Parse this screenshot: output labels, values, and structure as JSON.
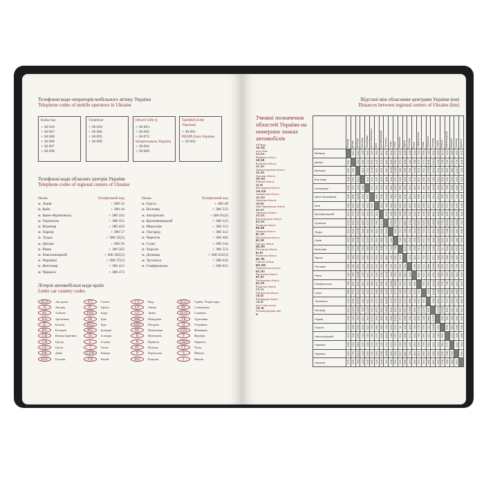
{
  "left_page": {
    "mobile": {
      "title_ua": "Телефонні коди операторів мобільного зв'язку України",
      "title_en": "Telephone codes of mobile operators in Ukraine",
      "operators": [
        {
          "name": "Київстар",
          "codes": [
            "+ 38 039",
            "+ 38 067",
            "+ 38 068",
            "+ 38 096",
            "+ 38 097",
            "+ 38 098"
          ]
        },
        {
          "name": "Vodafone",
          "codes": [
            "+ 38 050",
            "+ 38 066",
            "+ 38 095",
            "+ 38 099"
          ]
        },
        {
          "name": "lifecell (life:))",
          "codes": [
            "+ 38 063",
            "+ 38 093",
            "+ 38 073"
          ],
          "sub": "Інтертелеком Україна",
          "sub_codes": [
            "+ 38 094",
            "+ 38 089"
          ]
        },
        {
          "name": "ТриМоб (Utel Україна)",
          "codes": [
            "+ 38 091"
          ],
          "sub": "PEOPLEnet Україна",
          "sub_codes": [
            "+ 38 092"
          ]
        }
      ]
    },
    "regional": {
      "title_ua": "Телефонні коди обласних центрів України",
      "title_en": "Telephone codes of regional centers of Ukraine",
      "col_name": "Назва",
      "col_code": "Телефонний код",
      "left": [
        [
          "м. Львів",
          "+ 380 32"
        ],
        [
          "м. Київ",
          "+ 380 44"
        ],
        [
          "м. Івано-Франківськ",
          "+ 380 342"
        ],
        [
          "м. Тернопіль",
          "+ 380 352"
        ],
        [
          "м. Вінниця",
          "+ 380 432"
        ],
        [
          "м. Харків",
          "+ 380 57"
        ],
        [
          "м. Луцьк",
          "+ 380 32(2)"
        ],
        [
          "м. Дніпро",
          "+ 380 56"
        ],
        [
          "м. Рівне",
          "+ 380 362"
        ],
        [
          "м. Хмельницький",
          "+ 380 382(2)"
        ],
        [
          "м. Чернівці",
          "+ 380 37(2)"
        ],
        [
          "м. Житомир",
          "+ 380 412"
        ],
        [
          "м. Черкаси",
          "+ 380 472"
        ]
      ],
      "right": [
        [
          "м. Одеса",
          "+ 380 48"
        ],
        [
          "м. Полтава",
          "+ 380 532"
        ],
        [
          "м. Запоріжжя",
          "+ 380 61(2)"
        ],
        [
          "м. Кропивницький",
          "+ 380 522"
        ],
        [
          "м. Миколаїв",
          "+ 380 512"
        ],
        [
          "м. Ужгород",
          "+ 380 312"
        ],
        [
          "м. Чернігів",
          "+ 380 462"
        ],
        [
          "м. Суми",
          "+ 380 542"
        ],
        [
          "м. Херсон",
          "+ 380 552"
        ],
        [
          "м. Донецьк",
          "+ 380 622(3)"
        ],
        [
          "м. Луганськ",
          "+ 380 642"
        ],
        [
          "м. Сімферополь",
          "+ 380 652"
        ]
      ]
    },
    "car_codes": {
      "title_ua": "Літерні автомобільні коди країн",
      "title_en": "Letter car country codes",
      "columns": [
        [
          [
            "AUS",
            "Австралія"
          ],
          [
            "A",
            "Австрія"
          ],
          [
            "AL",
            "Албанія"
          ],
          [
            "RA",
            "Аргентина"
          ],
          [
            "B",
            "Бельгія"
          ],
          [
            "BG",
            "Болгарія"
          ],
          [
            "GB",
            "Велика Британія"
          ],
          [
            "GR",
            "Греція"
          ],
          [
            "GE",
            "Грузія"
          ],
          [
            "DK",
            "Данія"
          ],
          [
            "EST",
            "Естонія"
          ]
        ],
        [
          [
            "ET",
            "Єгипет"
          ],
          [
            "IL",
            "Ізраїль"
          ],
          [
            "IND",
            "Індія"
          ],
          [
            "IR",
            "Іран"
          ],
          [
            "IRQ",
            "Ірак"
          ],
          [
            "IRL",
            "Ірландія"
          ],
          [
            "IS",
            "Ісландія"
          ],
          [
            "E",
            "Іспанія"
          ],
          [
            "I",
            "Італія"
          ],
          [
            "CDN",
            "Канада"
          ],
          [
            "CN",
            "Китай"
          ]
        ],
        [
          [
            "CY",
            "Кіпр"
          ],
          [
            "LV",
            "Латвія"
          ],
          [
            "LT",
            "Литва"
          ],
          [
            "MK",
            "Македонія"
          ],
          [
            "MD",
            "Молдова"
          ],
          [
            "NL",
            "Нідерланди"
          ],
          [
            "D",
            "Німеччина"
          ],
          [
            "N",
            "Норвегія"
          ],
          [
            "PL",
            "Польща"
          ],
          [
            "P",
            "Португалія"
          ],
          [
            "RO",
            "Румунія"
          ]
        ],
        [
          [
            "SCG",
            "Сербія і Чорногорія"
          ],
          [
            "SK",
            "Словаччина"
          ],
          [
            "SLO",
            "Словенія"
          ],
          [
            "TR",
            "Туреччина"
          ],
          [
            "H",
            "Угорщина"
          ],
          [
            "FIN",
            "Фінляндія"
          ],
          [
            "F",
            "Франція"
          ],
          [
            "CRO",
            "Хорватія"
          ],
          [
            "CZ",
            "Чехія"
          ],
          [
            "S",
            "Швеція"
          ],
          [
            "J",
            "Японія"
          ]
        ]
      ]
    }
  },
  "right_page": {
    "title_ua": "Відстані між обласними центрами України (км)",
    "title_en": "Distances between regional centers of Ukraine (km)",
    "legend_title": "Умовні позначення областей України на номерних знаках автомобілів",
    "region_codes": [
      [
        "АР Крим",
        "AK, KK"
      ],
      [
        "місто Київ",
        "AA, KA"
      ],
      [
        "Вінницька область",
        "AB, KB"
      ],
      [
        "Волинська область",
        "AC, KC"
      ],
      [
        "Дніпропетровська область",
        "AE, KE"
      ],
      [
        "Донецька область",
        "AH, KH"
      ],
      [
        "Київська область",
        "AI, KI"
      ],
      [
        "Житомирська область",
        "AM, KM"
      ],
      [
        "Закарпатська область",
        "AO, KO"
      ],
      [
        "Запорізька область",
        "AP, KP"
      ],
      [
        "Івано-Франківська область",
        "AT, KT"
      ],
      [
        "Харківська область",
        "AX, KX"
      ],
      [
        "Кіровоградська область",
        "BA, HA"
      ],
      [
        "Луганська область",
        "BB, HB"
      ],
      [
        "Львівська область",
        "BC, HC"
      ],
      [
        "Миколаївська область",
        "BE, HE"
      ],
      [
        "Одеська область",
        "BH, HH"
      ],
      [
        "Полтавська область",
        "BI, HI"
      ],
      [
        "Рівненська область",
        "BK, HK"
      ],
      [
        "Сумська область",
        "BM, HM"
      ],
      [
        "Тернопільська область",
        "BO, HO"
      ],
      [
        "Херсонська область",
        "BT, HT"
      ],
      [
        "Хмельницька область",
        "BX, HX"
      ],
      [
        "Черкаська область",
        "CA, IA"
      ],
      [
        "Чернігівська область",
        "CB, IB"
      ],
      [
        "Чернівецька область",
        "CE, IE"
      ],
      [
        "місто Севастополь",
        "CH, IH"
      ],
      [
        "Загальнодержавні серії",
        "II"
      ]
    ],
    "distance_table": {
      "cities": [
        "Вінниця",
        "Дніпро",
        "Донецьк",
        "Житомир",
        "Запоріжжя",
        "Івано-Франківськ",
        "Київ",
        "Кропивницький",
        "Луганськ",
        "Луцьк",
        "Львів",
        "Миколаїв",
        "Одеса",
        "Полтава",
        "Рівне",
        "Сімферополь",
        "Суми",
        "Тернопіль",
        "Ужгород",
        "Харків",
        "Херсон",
        "Хмельницький",
        "Черкаси",
        "Чернівці",
        "Чернігів"
      ],
      "upper_triangle": [
        [
          582,
          832,
          148,
          656,
          346,
          260,
          312,
          920,
          324,
          376,
          426,
          440,
          458,
          242,
          740,
          568,
          246,
          610,
          666,
          514,
          124,
          348,
          300,
          376
        ],
        [
          250,
          560,
          122,
          896,
          442,
          270,
          402,
          906,
          958,
          370,
          480,
          182,
          788,
          462,
          370,
          828,
          1152,
          218,
          348,
          706,
          234,
          778,
          526
        ],
        [
          810,
          224,
          1146,
          692,
          520,
          192,
          1156,
          1208,
          580,
          690,
          390,
          1038,
          504,
          512,
          1078,
          1402,
          264,
          534,
          956,
          484,
          1012,
          704
        ],
        [
          634,
          464,
          142,
          326,
          898,
          346,
          422,
          518,
          532,
          420,
          228,
          832,
          450,
          332,
          728,
          612,
          606,
          234,
          326,
          418,
          234
        ],
        [
          970,
          534,
          344,
          416,
          980,
          1032,
          356,
          466,
          304,
          862,
          364,
          492,
          902,
          1226,
          316,
          310,
          780,
          308,
          836,
          648
        ],
        [
          606,
          626,
          1234,
          286,
          134,
          686,
          616,
          804,
          310,
          988,
          914,
          140,
          264,
          1012,
          780,
          230,
          678,
          146,
          698
        ],
        [
          304,
          780,
          464,
          564,
          496,
          550,
          302,
          346,
          810,
          308,
          474,
          870,
          494,
          584,
          376,
          226,
          560,
          146
        ],
        [
          672,
          636,
          688,
          208,
          294,
          250,
          518,
          506,
          438,
          558,
          882,
          458,
          280,
          436,
          142,
          508,
          418
        ],
        [
          1244,
          1296,
          772,
          882,
          478,
          1126,
          690,
          528,
          1166,
          1490,
          286,
          726,
          1044,
          572,
          1180,
          792
        ],
        [
          160,
          732,
          746,
          766,
          118,
          1046,
          724,
          174,
          454,
          958,
          820,
          248,
          672,
          360,
          508
        ],
        [
          748,
          686,
          818,
          250,
          1050,
          872,
          130,
          306,
          1010,
          842,
          252,
          724,
          280,
          656
        ],
        [
          110,
          434,
          668,
          314,
          646,
          618,
          942,
          574,
          94,
          504,
          350,
          552,
          610
        ],
        [
          520,
          682,
          372,
          732,
          572,
          872,
          668,
          164,
          498,
          436,
          482,
          696
        ],
        [
          648,
          580,
          212,
          688,
          1068,
          208,
          466,
          574,
          126,
          758,
          344
        ],
        [
          982,
          622,
          190,
          556,
          840,
          756,
          184,
          554,
          384,
          406
        ],
        [
          792,
          920,
          1244,
          680,
          226,
          798,
          584,
          854,
          924
        ],
        [
          782,
          1178,
          248,
          678,
          684,
          296,
          868,
          264
        ],
        [
          396,
          880,
          712,
          122,
          594,
          194,
          566
        ],
        [
          1276,
          1036,
          494,
          942,
          390,
          962
        ],
        [
          566,
          782,
          334,
          966,
          506
        ],
        [
          590,
          382,
          646,
          698
        ],
        [
          472,
          208,
          468
        ],
        [
          632,
          340
        ],
        [
          652
        ]
      ]
    }
  },
  "colors": {
    "accent": "#8a2a3e",
    "cover": "#1c1c1c",
    "paper": "#f7f5ef",
    "diagonal": "#7a7a7a"
  }
}
